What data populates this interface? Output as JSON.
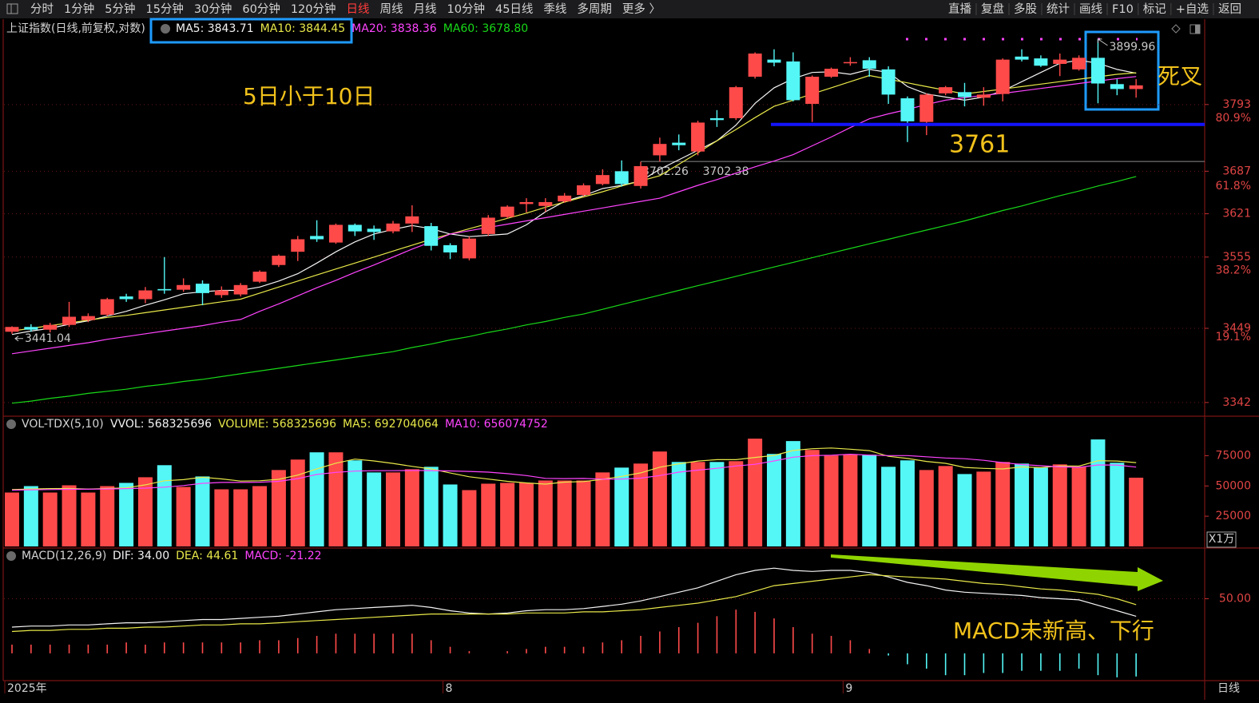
{
  "toolbar": {
    "left": [
      "分时",
      "1分钟",
      "5分钟",
      "15分钟",
      "30分钟",
      "60分钟",
      "120分钟",
      "日线",
      "周线",
      "月线",
      "10分钟",
      "45日线",
      "季线",
      "多周期",
      "更多 〉"
    ],
    "right": [
      "直播",
      "复盘",
      "多股",
      "统计",
      "画线",
      "F10",
      "标记",
      "+自选",
      "返回"
    ],
    "active_index": 7
  },
  "status": {
    "period": "日线"
  },
  "chart_data": [
    {
      "type": "candlestick",
      "title": "上证指数(日线,前复权,对数)",
      "log_scale": true,
      "grid": true,
      "ylim": [
        3326,
        3929
      ],
      "yticks": [
        3793,
        3687,
        3621,
        3555,
        3449,
        3342
      ],
      "ratio_ticks": [
        {
          "value": 3771,
          "label": "80.9%"
        },
        {
          "value": 3664,
          "label": "61.8%"
        },
        {
          "value": 3535,
          "label": "38.2%"
        },
        {
          "value": 3436,
          "label": "19.1%"
        }
      ],
      "up_color": "#ff4a4a",
      "down_color": "#54f6f6",
      "open": [
        3444,
        3451,
        3447,
        3454,
        3461,
        3469,
        3496,
        3492,
        3507,
        3506,
        3515,
        3498,
        3499,
        3518,
        3543,
        3563,
        3587,
        3577,
        3604,
        3598,
        3594,
        3606,
        3602,
        3573,
        3553,
        3590,
        3616,
        3636,
        3633,
        3640,
        3650,
        3667,
        3687,
        3664,
        3712,
        3732,
        3718,
        3771,
        3771,
        3838,
        3866,
        3863,
        3794,
        3838,
        3860,
        3865,
        3850,
        3803,
        3765,
        3811,
        3813,
        3804,
        3810,
        3871,
        3868,
        3859,
        3850,
        3869,
        3826,
        3818
      ],
      "high": [
        3452,
        3455,
        3457,
        3488,
        3471,
        3494,
        3500,
        3510,
        3555,
        3523,
        3520,
        3511,
        3516,
        3535,
        3559,
        3587,
        3611,
        3606,
        3606,
        3603,
        3610,
        3634,
        3607,
        3576,
        3586,
        3619,
        3634,
        3645,
        3645,
        3653,
        3668,
        3690,
        3704,
        3702,
        3740,
        3745,
        3767,
        3784,
        3823,
        3878,
        3883,
        3878,
        3840,
        3853,
        3870,
        3870,
        3855,
        3806,
        3811,
        3823,
        3828,
        3821,
        3868,
        3883,
        3873,
        3876,
        3873,
        3899.96,
        3834,
        3834
      ],
      "low": [
        3441.04,
        3444,
        3443,
        3451,
        3458,
        3467,
        3488,
        3486,
        3500,
        3503,
        3483,
        3494,
        3496,
        3516,
        3540,
        3549,
        3578,
        3575,
        3587,
        3581,
        3591,
        3593,
        3565,
        3552,
        3550,
        3587,
        3614,
        3623,
        3624,
        3638,
        3648,
        3665,
        3663,
        3660,
        3702.26,
        3720,
        3712,
        3757,
        3768,
        3835,
        3855,
        3798,
        3765,
        3836,
        3856,
        3838,
        3794,
        3733,
        3744,
        3808,
        3790,
        3791,
        3798,
        3863,
        3854,
        3839,
        3848,
        3795,
        3808,
        3804
      ],
      "close": [
        3451,
        3447,
        3454,
        3466,
        3467,
        3492,
        3492,
        3505,
        3505,
        3513,
        3501,
        3505,
        3513,
        3533,
        3557,
        3582,
        3582,
        3604,
        3594,
        3593,
        3606,
        3617,
        3572,
        3562,
        3583,
        3615,
        3632,
        3639,
        3639,
        3649,
        3665,
        3681,
        3667,
        3695,
        3730,
        3728,
        3764,
        3768,
        3821,
        3876,
        3861,
        3800,
        3838,
        3851,
        3862,
        3851,
        3809,
        3766,
        3809,
        3821,
        3805,
        3809,
        3866,
        3866,
        3856,
        3866,
        3869,
        3827,
        3818,
        3824
      ],
      "series": [
        {
          "label": "MA5: 3843.71",
          "color": "#f4f4f4",
          "values": [
            3440,
            3445,
            3449,
            3455,
            3460,
            3467,
            3474,
            3483,
            3491,
            3500,
            3503,
            3505,
            3505,
            3510,
            3519,
            3530,
            3546,
            3563,
            3578,
            3590,
            3597,
            3603,
            3598,
            3590,
            3586,
            3588,
            3590,
            3604,
            3624,
            3640,
            3649,
            3660,
            3665,
            3672,
            3690,
            3705,
            3720,
            3735,
            3760,
            3795,
            3820,
            3835,
            3845,
            3846,
            3842,
            3850,
            3845,
            3822,
            3810,
            3805,
            3800,
            3805,
            3815,
            3830,
            3845,
            3860,
            3865,
            3860,
            3850,
            3843.71
          ]
        },
        {
          "label": "MA10: 3844.45",
          "color": "#e8e84a",
          "values": [
            3445,
            3449,
            3453,
            3457,
            3461,
            3465,
            3468,
            3472,
            3476,
            3480,
            3484,
            3488,
            3492,
            3501,
            3510,
            3519,
            3528,
            3537,
            3546,
            3555,
            3564,
            3573,
            3582,
            3590,
            3598,
            3606,
            3614,
            3622,
            3631,
            3639,
            3647,
            3655,
            3664,
            3672,
            3680,
            3698,
            3716,
            3735,
            3753,
            3772,
            3790,
            3800,
            3810,
            3820,
            3830,
            3840,
            3834,
            3828,
            3822,
            3816,
            3810,
            3814,
            3818,
            3822,
            3826,
            3830,
            3834,
            3838,
            3842,
            3844.45
          ]
        },
        {
          "label": "MA20: 3838.36",
          "color": "#ff44ff",
          "values": [
            3412,
            3416,
            3420,
            3424,
            3428,
            3433,
            3437,
            3441,
            3445,
            3449,
            3453,
            3458,
            3462,
            3474,
            3485,
            3497,
            3509,
            3520,
            3532,
            3543,
            3555,
            3567,
            3578,
            3590,
            3595,
            3600,
            3605,
            3610,
            3615,
            3620,
            3625,
            3630,
            3635,
            3640,
            3645,
            3655,
            3665,
            3674,
            3684,
            3694,
            3703,
            3713,
            3727,
            3741,
            3756,
            3770,
            3778,
            3785,
            3793,
            3800,
            3804,
            3808,
            3811,
            3815,
            3819,
            3823,
            3827,
            3831,
            3835,
            3838.36
          ]
        },
        {
          "label": "MA60: 3678.80",
          "color": "#18d818",
          "values": [
            3341,
            3344,
            3348,
            3351,
            3355,
            3358,
            3361,
            3365,
            3368,
            3372,
            3375,
            3379,
            3383,
            3387,
            3391,
            3395,
            3399,
            3403,
            3407,
            3411,
            3415,
            3421,
            3426,
            3432,
            3437,
            3443,
            3448,
            3454,
            3459,
            3465,
            3470,
            3477,
            3484,
            3491,
            3498,
            3505,
            3512,
            3519,
            3526,
            3533,
            3540,
            3547,
            3554,
            3561,
            3568,
            3575,
            3582,
            3589,
            3596,
            3603,
            3610,
            3618,
            3626,
            3633,
            3641,
            3649,
            3656,
            3664,
            3671,
            3678.8
          ]
        }
      ],
      "level_line": {
        "value": 3761,
        "color": "#1414ff"
      },
      "ref_line": {
        "value": 3702.38,
        "color": "#8a8a8a"
      },
      "annotations": [
        "5日小于10日",
        "死叉"
      ]
    },
    {
      "type": "bar",
      "title": "VOL-TDX(5,10)",
      "legend": [
        {
          "label": "VVOL: 568325696",
          "color": "#f4f4f4"
        },
        {
          "label": "VOLUME: 568325696",
          "color": "#e8e84a"
        }
      ],
      "unit": "X1万",
      "ylim": [
        0,
        107000
      ],
      "yticks": [
        75000,
        50000,
        25000
      ],
      "values": [
        44560,
        49880,
        44560,
        50540,
        44560,
        49880,
        52540,
        57200,
        67170,
        49210,
        57860,
        47220,
        47220,
        49880,
        63170,
        71820,
        77800,
        77800,
        71160,
        61180,
        61180,
        63840,
        65840,
        51210,
        46550,
        51870,
        52540,
        52540,
        54530,
        54530,
        54530,
        61180,
        65170,
        68500,
        78470,
        69830,
        69830,
        69830,
        70490,
        89110,
        76470,
        87110,
        79800,
        75150,
        75810,
        75810,
        65840,
        71160,
        63170,
        66500,
        59850,
        61840,
        69830,
        68500,
        65170,
        67840,
        65840,
        88450,
        69170,
        56832.57
      ],
      "series": [
        {
          "label": "MA5: 692704064",
          "color": "#e8e84a",
          "values": [
            47000,
            47500,
            47800,
            47900,
            47400,
            47900,
            48400,
            50900,
            54300,
            55200,
            57200,
            55800,
            54000,
            54300,
            55500,
            59000,
            64100,
            68800,
            72200,
            70700,
            68600,
            66200,
            64100,
            60700,
            57600,
            55700,
            53800,
            52500,
            51500,
            53200,
            53600,
            55500,
            57900,
            60800,
            65500,
            68300,
            70600,
            71700,
            71700,
            73600,
            75200,
            79300,
            80800,
            81400,
            80400,
            79200,
            74500,
            72700,
            70300,
            68700,
            65300,
            64500,
            64100,
            65700,
            65100,
            66600,
            66400,
            70900,
            70600,
            69270.41
          ]
        },
        {
          "label": "MA10: 656074752",
          "color": "#ff44ff",
          "values": [
            46500,
            46800,
            47000,
            47200,
            47300,
            47500,
            47800,
            48200,
            49000,
            50300,
            52200,
            52900,
            52900,
            53100,
            53800,
            56100,
            59500,
            61200,
            62300,
            62600,
            62600,
            62800,
            62700,
            62400,
            62000,
            61400,
            60200,
            58600,
            56300,
            56100,
            56200,
            55600,
            55700,
            56500,
            58600,
            61400,
            63100,
            64600,
            66500,
            67900,
            70700,
            73800,
            75000,
            75400,
            76200,
            75500,
            75100,
            75100,
            74100,
            73100,
            72500,
            71200,
            69300,
            67700,
            66700,
            65800,
            65400,
            67400,
            67300,
            65607.48
          ]
        }
      ]
    },
    {
      "type": "macd",
      "title": "MACD(12,26,9)",
      "ylim": [
        -25,
        95
      ],
      "yticks": [
        {
          "value": 50,
          "label": "50.00"
        }
      ],
      "series": [
        {
          "label": "DIF: 34.00",
          "color": "#f4f4f4",
          "values": [
            24,
            25,
            25,
            26,
            26,
            27,
            28,
            28,
            29,
            30,
            31,
            31,
            32,
            33,
            34,
            36,
            38,
            40,
            41,
            42,
            43,
            44,
            42,
            39,
            37,
            36,
            37,
            39,
            40,
            40,
            41,
            43,
            45,
            48,
            52,
            56,
            60,
            66,
            72,
            76,
            78,
            76,
            75,
            76,
            76,
            74,
            70,
            65,
            62,
            58,
            56,
            55,
            54,
            53,
            51,
            50,
            49,
            44,
            39,
            34.0
          ]
        },
        {
          "label": "DEA: 44.61",
          "color": "#e8e84a",
          "values": [
            20,
            21,
            21,
            22,
            22,
            23,
            23,
            24,
            24,
            25,
            26,
            26,
            27,
            27,
            28,
            29,
            30,
            31,
            32,
            33,
            34,
            35,
            36,
            36,
            36,
            36,
            36,
            37,
            37,
            37,
            38,
            38,
            39,
            40,
            42,
            44,
            46,
            49,
            52,
            57,
            62,
            64,
            66,
            68,
            70,
            72,
            71,
            70,
            69,
            68,
            66,
            64,
            63,
            61,
            59,
            58,
            56,
            54,
            50,
            44.61
          ]
        }
      ],
      "histogram": {
        "label": "MACD: -21.22",
        "color": "#ff44ff",
        "up_color": "#ff4a4a",
        "down_color": "#54f6f6",
        "values": [
          8,
          8,
          8,
          8,
          8,
          8,
          10,
          8,
          10,
          10,
          10,
          10,
          10,
          12,
          12,
          14,
          16,
          18,
          18,
          18,
          18,
          18,
          12,
          6,
          2,
          0,
          2,
          4,
          6,
          6,
          6,
          10,
          12,
          16,
          20,
          24,
          28,
          34,
          40,
          38,
          32,
          24,
          18,
          16,
          12,
          4,
          -2,
          -10,
          -14,
          -20,
          -20,
          -18,
          -18,
          -16,
          -16,
          -16,
          -14,
          -20,
          -22,
          -21.22
        ]
      },
      "categories": [
        "2025年",
        null,
        null,
        null,
        null,
        null,
        null,
        null,
        null,
        null,
        null,
        null,
        null,
        null,
        null,
        null,
        null,
        null,
        null,
        null,
        null,
        null,
        null,
        "8",
        null,
        null,
        null,
        null,
        null,
        null,
        null,
        null,
        null,
        null,
        null,
        null,
        null,
        null,
        null,
        null,
        null,
        null,
        null,
        null,
        "9",
        null,
        null,
        null,
        null,
        null,
        null,
        null,
        null,
        null,
        null,
        null,
        null,
        null,
        null,
        null
      ],
      "annotation": "MACD未新高、下行"
    }
  ]
}
